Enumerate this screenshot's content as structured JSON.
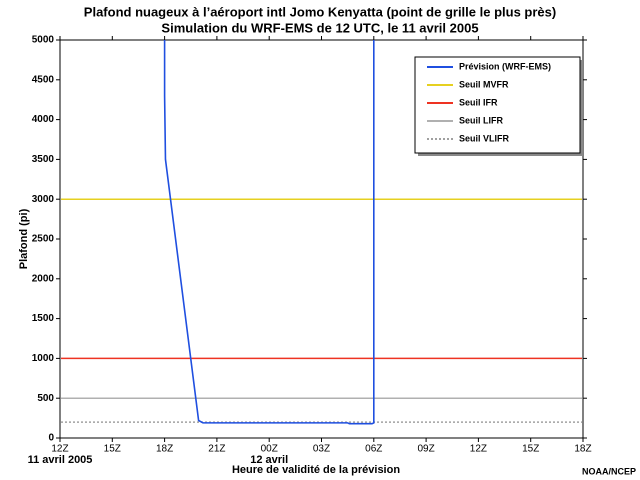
{
  "chart_data": {
    "type": "line",
    "title": "Plafond nuageux à l’aéroport intl Jomo Kenyatta (point de grille le plus près)",
    "subtitle": "Simulation du WRF-EMS de 12 UTC, le 11 avril 2005",
    "y_label": "Plafond (pi)",
    "x_label": "Heure de validité de la prévision",
    "credit": "NOAA/NCEP",
    "date_labels": [
      "11 avril 2005",
      "12 avril"
    ],
    "xlim": [
      0,
      30
    ],
    "xticks": [
      {
        "value": 0,
        "label": "12Z"
      },
      {
        "value": 3,
        "label": "15Z"
      },
      {
        "value": 6,
        "label": "18Z"
      },
      {
        "value": 9,
        "label": "21Z"
      },
      {
        "value": 12,
        "label": "00Z"
      },
      {
        "value": 15,
        "label": "03Z"
      },
      {
        "value": 18,
        "label": "06Z"
      },
      {
        "value": 21,
        "label": "09Z"
      },
      {
        "value": 24,
        "label": "12Z"
      },
      {
        "value": 27,
        "label": "15Z"
      },
      {
        "value": 30,
        "label": "18Z"
      }
    ],
    "ylim": [
      0,
      5000
    ],
    "yticks": [
      0,
      500,
      1000,
      1500,
      2000,
      2500,
      3000,
      3500,
      4000,
      4500,
      5000
    ],
    "series": [
      {
        "name": "Prévision (WRF-EMS)",
        "color": "#1f4fe0",
        "x": [
          6,
          6,
          6.05,
          7.95,
          8.2,
          16.5,
          16.6,
          17.9,
          18,
          18,
          18
        ],
        "values": [
          5000,
          4300,
          3500,
          220,
          190,
          190,
          180,
          180,
          190,
          2600,
          5000
        ]
      }
    ],
    "thresholds": [
      {
        "name": "Seuil MVFR",
        "color": "#e6d020",
        "value": 3000,
        "dashed": false
      },
      {
        "name": "Seuil IFR",
        "color": "#ee3322",
        "value": 1000,
        "dashed": false
      },
      {
        "name": "Seuil LIFR",
        "color": "#b0b0b0",
        "value": 500,
        "dashed": false
      },
      {
        "name": "Seuil VLIFR",
        "color": "#a0a0a0",
        "value": 200,
        "dashed": true
      }
    ]
  }
}
